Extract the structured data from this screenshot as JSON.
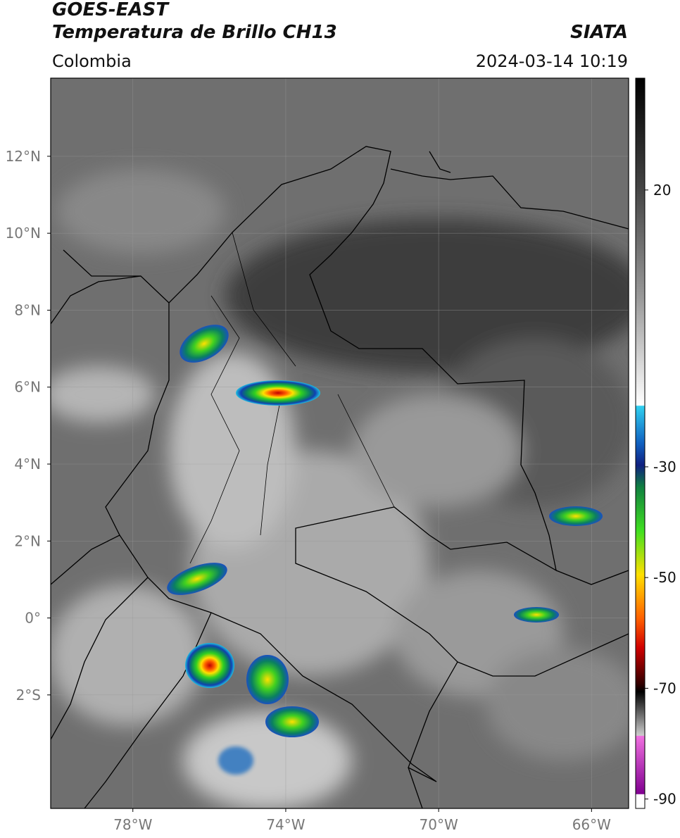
{
  "header": {
    "satellite": "GOES-EAST",
    "product": "Temperatura de Brillo CH13",
    "source": "SIATA",
    "region": "Colombia",
    "timestamp": "2024-03-14 10:19"
  },
  "map": {
    "lonlim": [
      -80.15,
      -65.03
    ],
    "latlim": [
      -4.95,
      14.03
    ],
    "grid": true,
    "xticks": [
      {
        "value": -78,
        "label": "78°W"
      },
      {
        "value": -74,
        "label": "74°W"
      },
      {
        "value": -70,
        "label": "70°W"
      },
      {
        "value": -66,
        "label": "66°W"
      }
    ],
    "yticks": [
      {
        "value": 12,
        "label": "12°N"
      },
      {
        "value": 10,
        "label": "10°N"
      },
      {
        "value": 8,
        "label": "8°N"
      },
      {
        "value": 6,
        "label": "6°N"
      },
      {
        "value": 4,
        "label": "4°N"
      },
      {
        "value": 2,
        "label": "2°N"
      },
      {
        "value": 0,
        "label": "0°"
      },
      {
        "value": -2,
        "label": "2°S"
      }
    ]
  },
  "colorbar": {
    "lim": [
      -91.7,
      40.2
    ],
    "ticks": [
      20,
      -30,
      -50,
      -70,
      -90
    ]
  }
}
